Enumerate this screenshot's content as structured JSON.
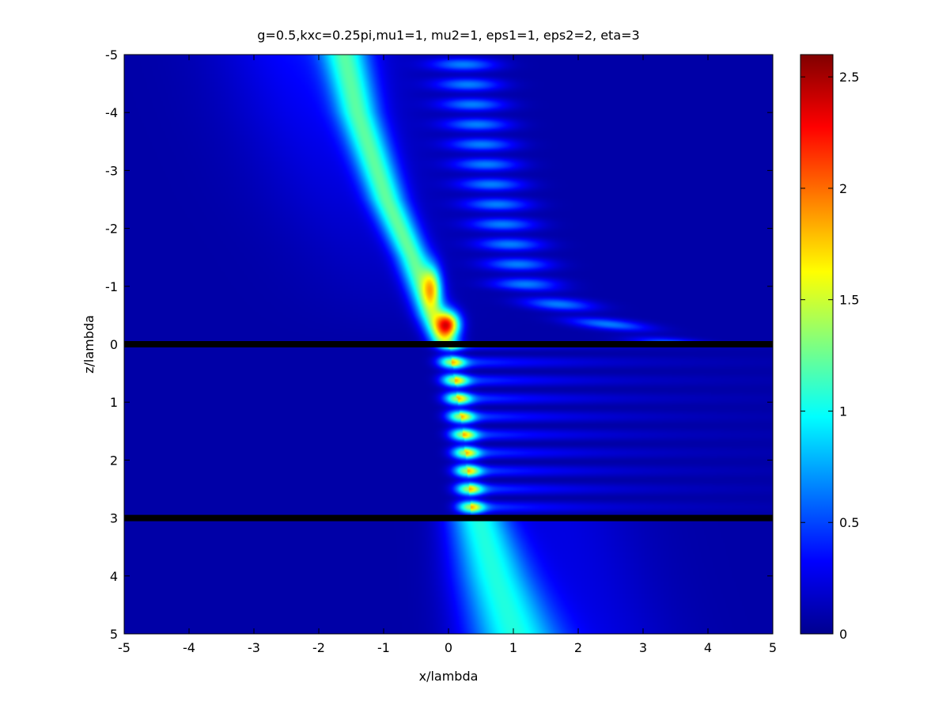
{
  "chart_data": {
    "type": "heatmap",
    "title": "g=0.5,kxc=0.25pi,mu1=1, mu2=1, eps1=1, eps2=2, eta=3",
    "xlabel": "x/lambda",
    "ylabel": "z/lambda",
    "xlim": [
      -5,
      5
    ],
    "ylim": [
      -5,
      5
    ],
    "y_axis_reversed": true,
    "x_ticks": [
      -5,
      -4,
      -3,
      -2,
      -1,
      0,
      1,
      2,
      3,
      4,
      5
    ],
    "y_ticks": [
      -5,
      -4,
      -3,
      -2,
      -1,
      0,
      1,
      2,
      3,
      4,
      5
    ],
    "colormap": "jet",
    "colorbar": {
      "range": [
        0,
        2.6
      ],
      "ticks": [
        0,
        0.5,
        1,
        1.5,
        2,
        2.5
      ]
    },
    "interfaces": [
      0,
      3
    ],
    "interface_color": "#000000",
    "beam": {
      "upper_center_path": [
        [
          -5,
          -1.6
        ],
        [
          -4.5,
          -1.5
        ],
        [
          -4,
          -1.4
        ],
        [
          -3.5,
          -1.25
        ],
        [
          -3,
          -1.1
        ],
        [
          -2.5,
          -0.95
        ],
        [
          -2,
          -0.75
        ],
        [
          -1.5,
          -0.55
        ],
        [
          -1,
          -0.4
        ],
        [
          -0.5,
          -0.25
        ],
        [
          0,
          -0.05
        ]
      ],
      "reflected_center_path": [
        [
          -5,
          0.2
        ],
        [
          -4,
          0.4
        ],
        [
          -3,
          0.6
        ],
        [
          -2,
          0.85
        ],
        [
          -1,
          1.2
        ],
        [
          -0.5,
          2.0
        ],
        [
          0,
          3.5
        ]
      ],
      "layer_center_path": [
        [
          0,
          0
        ],
        [
          0.5,
          0.02
        ],
        [
          1,
          0.05
        ],
        [
          1.5,
          0.12
        ],
        [
          2,
          0.2
        ],
        [
          2.5,
          0.3
        ],
        [
          3,
          0.4
        ]
      ],
      "transmitted_center_path": [
        [
          3,
          0.45
        ],
        [
          4,
          0.7
        ],
        [
          5,
          1.0
        ]
      ],
      "peak": {
        "x": 0.0,
        "z": -0.35,
        "value": 2.6
      }
    }
  }
}
